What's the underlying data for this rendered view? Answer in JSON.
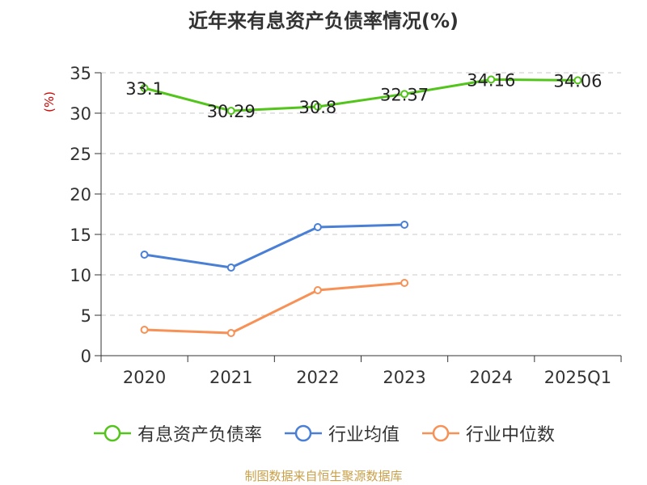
{
  "chart_data": {
    "type": "line",
    "title": "近年来有息资产负债率情况(%)",
    "ylabel": "(%)",
    "categories": [
      "2020",
      "2021",
      "2022",
      "2023",
      "2024",
      "2025Q1"
    ],
    "ylim": [
      0,
      35
    ],
    "yticks": [
      0,
      5,
      10,
      15,
      20,
      25,
      30,
      35
    ],
    "grid": true,
    "legend_position": "bottom",
    "series": [
      {
        "name": "有息资产负债率",
        "color": "#52c41a",
        "values": [
          33.1,
          30.29,
          30.8,
          32.37,
          34.16,
          34.06
        ],
        "labels": [
          "33.1",
          "30.29",
          "30.8",
          "32.37",
          "34.16",
          "34.06"
        ]
      },
      {
        "name": "行业均值",
        "color": "#4a7fd6",
        "values": [
          12.5,
          10.9,
          15.9,
          16.2,
          null,
          null
        ]
      },
      {
        "name": "行业中位数",
        "color": "#f79156",
        "values": [
          3.2,
          2.8,
          8.1,
          9.0,
          null,
          null
        ]
      }
    ]
  },
  "source": "制图数据来自恒生聚源数据库"
}
